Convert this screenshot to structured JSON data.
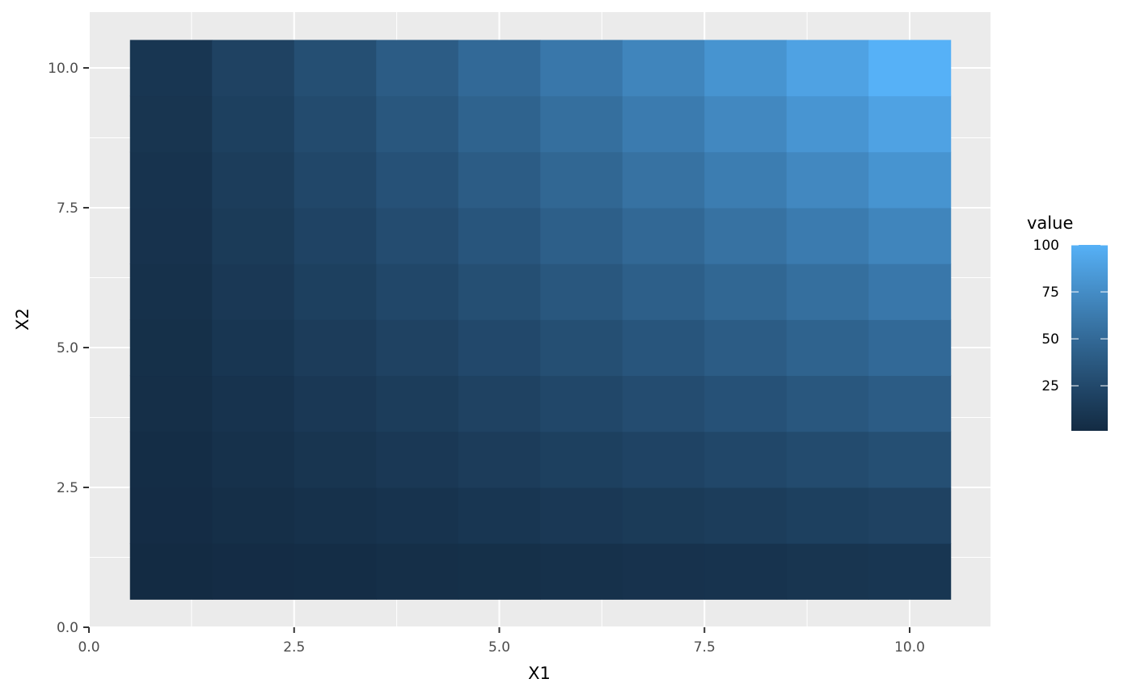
{
  "chart_data": {
    "type": "heatmap",
    "title": "",
    "xlabel": "X1",
    "ylabel": "X2",
    "xlim": [
      0,
      11
    ],
    "ylim": [
      0,
      10.6
    ],
    "x": [
      1,
      2,
      3,
      4,
      5,
      6,
      7,
      8,
      9,
      10
    ],
    "y": [
      1,
      2,
      3,
      4,
      5,
      6,
      7,
      8,
      9,
      10
    ],
    "values_rule": "value = X1 * X2",
    "values": [
      [
        1,
        2,
        3,
        4,
        5,
        6,
        7,
        8,
        9,
        10
      ],
      [
        2,
        4,
        6,
        8,
        10,
        12,
        14,
        16,
        18,
        20
      ],
      [
        3,
        6,
        9,
        12,
        15,
        18,
        21,
        24,
        27,
        30
      ],
      [
        4,
        8,
        12,
        16,
        20,
        24,
        28,
        32,
        36,
        40
      ],
      [
        5,
        10,
        15,
        20,
        25,
        30,
        35,
        40,
        45,
        50
      ],
      [
        6,
        12,
        18,
        24,
        30,
        36,
        42,
        48,
        54,
        60
      ],
      [
        7,
        14,
        21,
        28,
        35,
        42,
        49,
        56,
        63,
        70
      ],
      [
        8,
        16,
        24,
        32,
        40,
        48,
        56,
        64,
        72,
        80
      ],
      [
        9,
        18,
        27,
        36,
        45,
        54,
        63,
        72,
        81,
        90
      ],
      [
        10,
        20,
        30,
        40,
        50,
        60,
        70,
        80,
        90,
        100
      ]
    ],
    "x_ticks": [
      "0.0",
      "2.5",
      "5.0",
      "7.5",
      "10.0"
    ],
    "y_ticks": [
      "0.0",
      "2.5",
      "5.0",
      "7.5",
      "10.0"
    ],
    "grid": true,
    "legend": {
      "title": "value",
      "position": "right",
      "ticks": [
        "25",
        "50",
        "75",
        "100"
      ],
      "range": [
        1,
        100
      ],
      "low_color": "#132B43",
      "high_color": "#56B1F7"
    },
    "panel_background": "#EBEBEB"
  }
}
